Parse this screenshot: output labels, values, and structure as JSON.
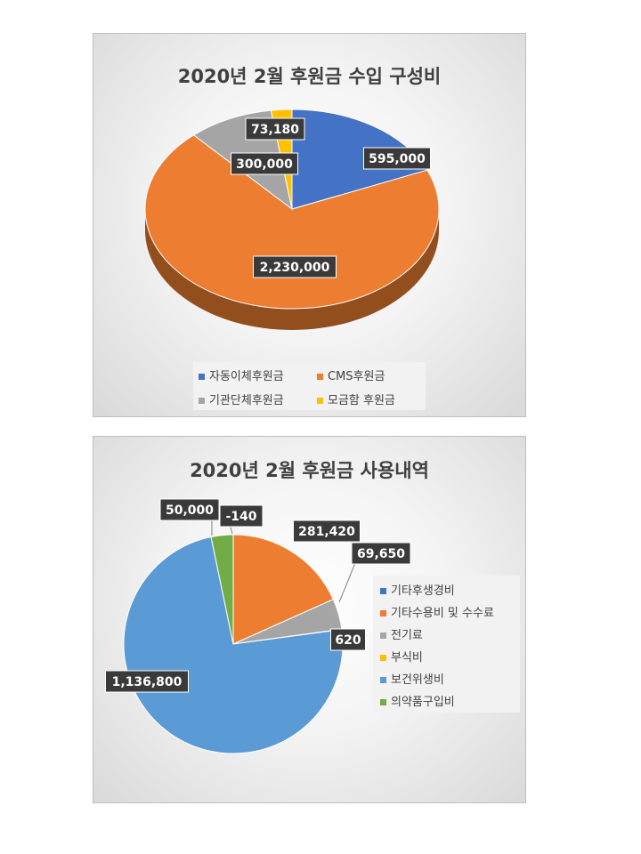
{
  "chart_data": [
    {
      "type": "pie",
      "title": "2020년 2월 후원금 수입 구성비",
      "categories": [
        "자동이체후원금",
        "CMS후원금",
        "기관단체후원금",
        "모금함 후원금"
      ],
      "values": [
        595000,
        2230000,
        300000,
        73180
      ],
      "data_labels": [
        "595,000",
        "2,230,000",
        "300,000",
        "73,180"
      ],
      "colors": [
        "#4472c4",
        "#ed7d31",
        "#a5a5a5",
        "#ffc000"
      ],
      "style": "3d",
      "legend_position": "bottom"
    },
    {
      "type": "pie",
      "title": "2020년 2월 후원금 사용내역",
      "categories": [
        "기타후생경비",
        "기타수용비 및 수수료",
        "전기료",
        "부식비",
        "보건위생비",
        "의약품구입비"
      ],
      "values": [
        -140,
        281420,
        69650,
        620,
        1136800,
        50000
      ],
      "data_labels": [
        "-140",
        "281,420",
        "69,650",
        "620",
        "1,136,800",
        "50,000"
      ],
      "colors": [
        "#4472c4",
        "#ed7d31",
        "#a5a5a5",
        "#ffc000",
        "#5b9bd5",
        "#70ad47"
      ],
      "legend_position": "right"
    }
  ]
}
